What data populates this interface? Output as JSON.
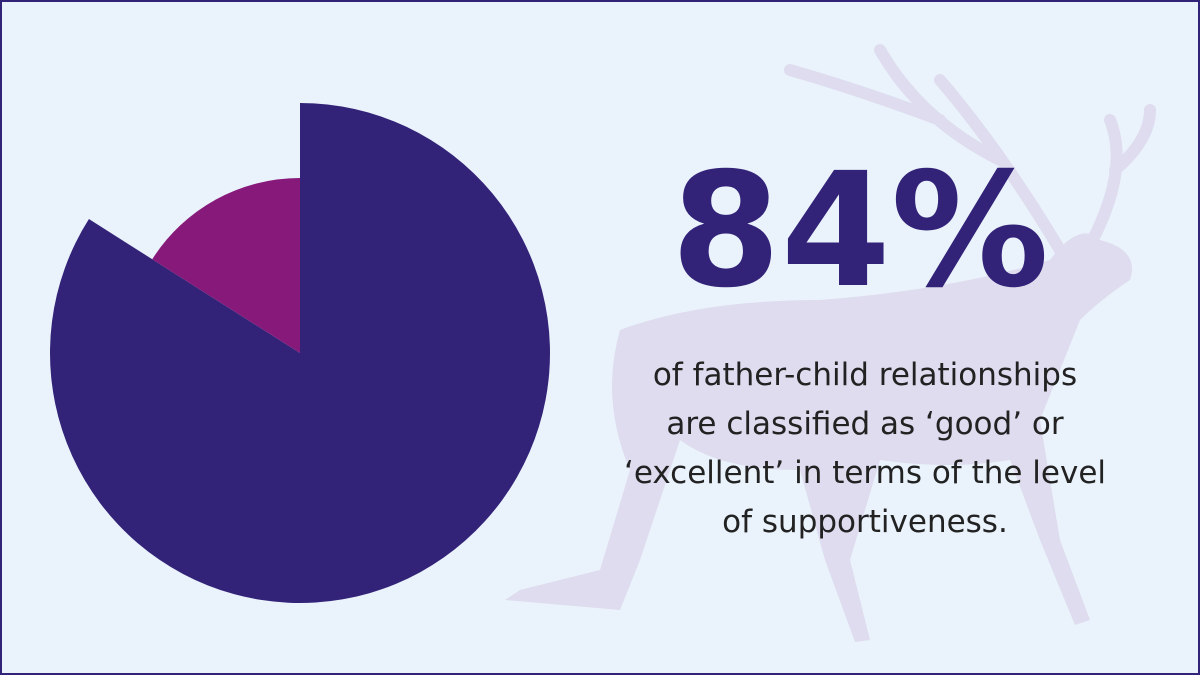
{
  "chart_data": {
    "type": "pie",
    "values": [
      84,
      16
    ],
    "value_labels": [
      "84%",
      null
    ],
    "colors": [
      "#332378",
      "#86197a"
    ],
    "annotation": [
      "of father-child relationships",
      "are classified as ‘good’ or",
      "‘excellent’ in terms of the level",
      "of supportiveness."
    ]
  }
}
